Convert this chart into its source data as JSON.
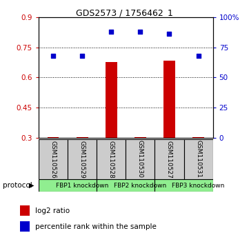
{
  "title": "GDS2573 / 1756462_1",
  "samples": [
    "GSM110526",
    "GSM110529",
    "GSM110528",
    "GSM110530",
    "GSM110527",
    "GSM110531"
  ],
  "log2_ratio": [
    0.302,
    0.302,
    0.675,
    0.302,
    0.685,
    0.302
  ],
  "percentile_rank": [
    68,
    68,
    88,
    88,
    86,
    68
  ],
  "ylim_left": [
    0.3,
    0.9
  ],
  "ylim_right": [
    0,
    100
  ],
  "yticks_left": [
    0.3,
    0.45,
    0.6,
    0.75,
    0.9
  ],
  "yticks_right": [
    0,
    25,
    50,
    75,
    100
  ],
  "ytick_labels_left": [
    "0.3",
    "0.45",
    "0.6",
    "0.75",
    "0.9"
  ],
  "ytick_labels_right": [
    "0",
    "25",
    "50",
    "75",
    "100%"
  ],
  "protocol_groups": [
    {
      "label": "FBP1 knockdown",
      "start": 0,
      "end": 2,
      "color": "#90EE90"
    },
    {
      "label": "FBP2 knockdown",
      "start": 2,
      "end": 4,
      "color": "#90EE90"
    },
    {
      "label": "FBP3 knockdown",
      "start": 4,
      "end": 6,
      "color": "#90EE90"
    }
  ],
  "bar_color": "#cc0000",
  "dot_color": "#0000cc",
  "bar_width": 0.4,
  "dot_size": 25,
  "background_color": "#ffffff",
  "sample_box_color": "#cccccc",
  "legend_items": [
    {
      "label": "log2 ratio",
      "color": "#cc0000"
    },
    {
      "label": "percentile rank within the sample",
      "color": "#0000cc"
    }
  ],
  "protocol_label": "protocol",
  "left_axis_color": "#cc0000",
  "right_axis_color": "#0000cc",
  "title_fontsize": 9,
  "tick_fontsize": 7.5,
  "sample_fontsize": 6.5,
  "proto_fontsize": 6.5,
  "legend_fontsize": 7.5
}
